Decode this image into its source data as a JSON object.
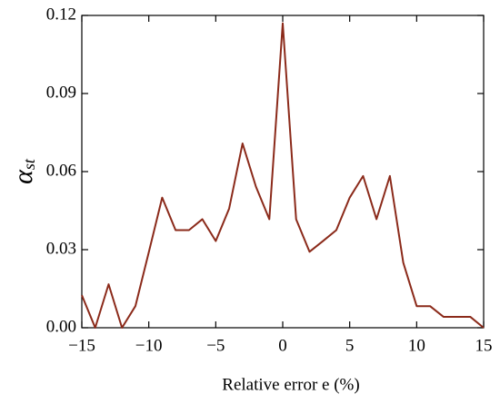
{
  "chart_data": {
    "type": "line",
    "x_label": "Relative error e (%)",
    "y_label": {
      "symbol": "α",
      "subscript": "st"
    },
    "x": [
      -15,
      -14,
      -13,
      -12,
      -11,
      -10,
      -9,
      -8,
      -7,
      -6,
      -5,
      -4,
      -3,
      -2,
      -1,
      0,
      1,
      2,
      3,
      4,
      5,
      6,
      7,
      8,
      9,
      10,
      11,
      12,
      13,
      14,
      15
    ],
    "series": [
      {
        "color": "#8b2a1a",
        "values": [
          0.0125,
          0,
          0.0167,
          0,
          0.0083,
          0.029,
          0.05,
          0.0375,
          0.0375,
          0.0417,
          0.0333,
          0.0458,
          0.0708,
          0.0542,
          0.0417,
          0.117,
          0.0417,
          0.0292,
          0.0333,
          0.0375,
          0.05,
          0.0583,
          0.0417,
          0.0583,
          0.025,
          0.0083,
          0.0083,
          0.0042,
          0.0042,
          0.0042,
          0
        ]
      }
    ],
    "xlim": [
      -15,
      15
    ],
    "xticks": [
      {
        "value": -15,
        "label": "−15"
      },
      {
        "value": -10,
        "label": "−10"
      },
      {
        "value": -5,
        "label": "−5"
      },
      0,
      5,
      10,
      15
    ],
    "ylim": [
      0,
      0.12
    ],
    "yticks": [
      {
        "value": 0,
        "label": "0.00"
      },
      0.03,
      0.06,
      0.09,
      0.12
    ]
  }
}
